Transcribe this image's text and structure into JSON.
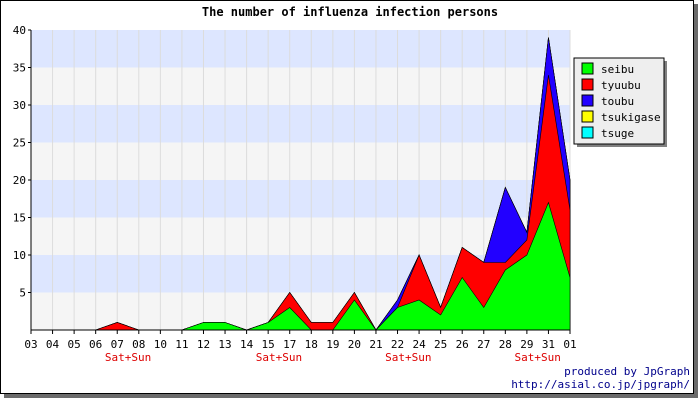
{
  "chart_data": {
    "type": "area",
    "stacked": true,
    "title": "The number of influenza infection persons",
    "categories": [
      "03",
      "04",
      "05",
      "06",
      "07",
      "08",
      "10",
      "11",
      "12",
      "13",
      "14",
      "15",
      "17",
      "18",
      "19",
      "20",
      "21",
      "22",
      "24",
      "25",
      "26",
      "27",
      "28",
      "29",
      "31",
      "01"
    ],
    "weekend_labels": [
      {
        "index": 4,
        "label": "Sat+Sun"
      },
      {
        "index": 11,
        "label": "Sat+Sun"
      },
      {
        "index": 17,
        "label": "Sat+Sun"
      },
      {
        "index": 23,
        "label": "Sat+Sun"
      }
    ],
    "ylim": [
      0,
      40
    ],
    "yticks": [
      5,
      10,
      15,
      20,
      25,
      30,
      35,
      40
    ],
    "grid": true,
    "legend_position": "right",
    "series": [
      {
        "name": "seibu",
        "color": "#00ff00",
        "values": [
          0,
          0,
          0,
          0,
          0,
          0,
          0,
          0,
          1,
          1,
          0,
          1,
          3,
          0,
          0,
          4,
          0,
          3,
          4,
          2,
          7,
          3,
          8,
          10,
          17,
          7
        ]
      },
      {
        "name": "tyuubu",
        "color": "#ff0000",
        "values": [
          0,
          0,
          0,
          0,
          1,
          0,
          0,
          0,
          0,
          0,
          0,
          0,
          2,
          1,
          1,
          1,
          0,
          0,
          6,
          1,
          4,
          6,
          1,
          2,
          17,
          9
        ]
      },
      {
        "name": "toubu",
        "color": "#2200ff",
        "values": [
          0,
          0,
          0,
          0,
          0,
          0,
          0,
          0,
          0,
          0,
          0,
          0,
          0,
          0,
          0,
          0,
          0,
          1,
          0,
          0,
          0,
          0,
          10,
          1,
          5,
          4
        ]
      },
      {
        "name": "tsukigase",
        "color": "#ffff00",
        "values": [
          0,
          0,
          0,
          0,
          0,
          0,
          0,
          0,
          0,
          0,
          0,
          0,
          0,
          0,
          0,
          0,
          0,
          0,
          0,
          0,
          0,
          0,
          0,
          0,
          0,
          0
        ]
      },
      {
        "name": "tsuge",
        "color": "#00ffff",
        "values": [
          0,
          0,
          0,
          0,
          0,
          0,
          0,
          0,
          0,
          0,
          0,
          0,
          0,
          0,
          0,
          0,
          0,
          0,
          0,
          0,
          0,
          0,
          0,
          0,
          0,
          0
        ]
      }
    ]
  },
  "credit": {
    "line1": "produced by JpGraph",
    "line2": "http://asial.co.jp/jpgraph/"
  }
}
